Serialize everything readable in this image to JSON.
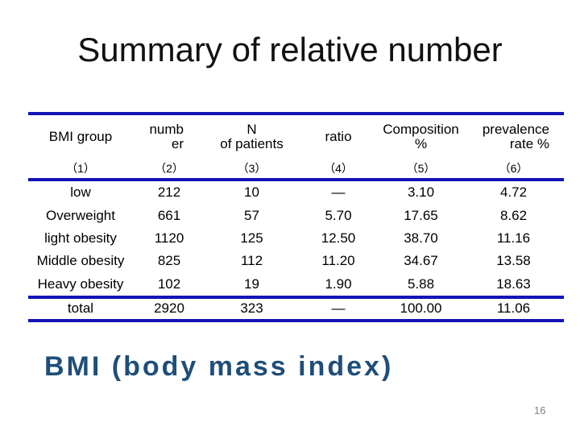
{
  "slide": {
    "title": "Summary of relative number",
    "footnote": "BMI (body mass index)",
    "page_number": "16"
  },
  "theme": {
    "background": "#ffffff",
    "rule_color": "#1313b8",
    "footnote_color": "#1f4e79",
    "page_number_color": "#808080",
    "text_color": "#000000"
  },
  "table": {
    "columns": [
      {
        "id": "bmi-group",
        "lines": [
          "BMI group"
        ],
        "index_label": "（1）"
      },
      {
        "id": "number",
        "lines": [
          "numb",
          "er"
        ],
        "index_label": "（2）"
      },
      {
        "id": "n-of-patients",
        "lines": [
          "N",
          "of patients"
        ],
        "index_label": "（3）"
      },
      {
        "id": "ratio",
        "lines": [
          "ratio"
        ],
        "index_label": "（4）"
      },
      {
        "id": "composition-pct",
        "lines": [
          "Composition",
          "%"
        ],
        "index_label": "（5）"
      },
      {
        "id": "prevalence-rate-pct",
        "lines": [
          "prevalence",
          "rate %"
        ],
        "index_label": "（6）"
      }
    ],
    "rows": [
      {
        "cells": [
          "low",
          "212",
          "10",
          "—",
          "3.10",
          "4.72"
        ]
      },
      {
        "cells": [
          "Overweight",
          "661",
          "57",
          "5.70",
          "17.65",
          "8.62"
        ]
      },
      {
        "cells": [
          "light obesity",
          "1120",
          "125",
          "12.50",
          "38.70",
          "11.16"
        ]
      },
      {
        "cells": [
          "Middle obesity",
          "825",
          "112",
          "11.20",
          "34.67",
          "13.58"
        ]
      },
      {
        "cells": [
          "Heavy obesity",
          "102",
          "19",
          "1.90",
          "5.88",
          "18.63"
        ]
      }
    ],
    "total_row": {
      "cells": [
        "total",
        "2920",
        "323",
        "—",
        "100.00",
        "11.06"
      ]
    }
  }
}
